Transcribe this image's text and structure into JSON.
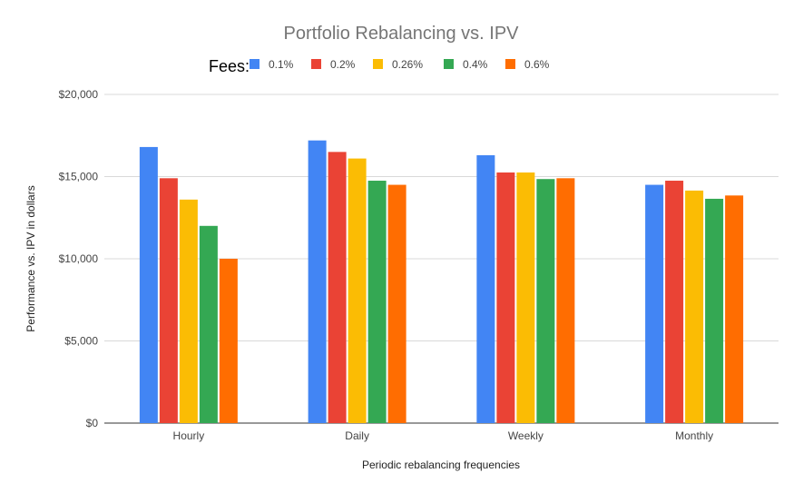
{
  "chart_data": {
    "type": "bar",
    "title": "Portfolio Rebalancing vs. IPV",
    "xlabel": "Periodic rebalancing frequencies",
    "ylabel": "Performance vs. IPV in dollars",
    "legend_title": "Fees:",
    "legend_position": "top",
    "ylim": [
      0,
      20000
    ],
    "yticks": [
      0,
      5000,
      10000,
      15000,
      20000
    ],
    "ytick_labels": [
      "$0",
      "$5,000",
      "$10,000",
      "$15,000",
      "$20,000"
    ],
    "grid": true,
    "categories": [
      "Hourly",
      "Daily",
      "Weekly",
      "Monthly"
    ],
    "series": [
      {
        "name": "0.1%",
        "color": "#4285f4",
        "values": [
          16800,
          17200,
          16300,
          14500
        ]
      },
      {
        "name": "0.2%",
        "color": "#ea4335",
        "values": [
          14900,
          16500,
          15250,
          14750
        ]
      },
      {
        "name": "0.26%",
        "color": "#fbbc04",
        "values": [
          13600,
          16100,
          15250,
          14150
        ]
      },
      {
        "name": "0.4%",
        "color": "#34a853",
        "values": [
          12000,
          14750,
          14850,
          13650
        ]
      },
      {
        "name": "0.6%",
        "color": "#ff6d01",
        "values": [
          10000,
          14500,
          14900,
          13850
        ]
      }
    ]
  }
}
